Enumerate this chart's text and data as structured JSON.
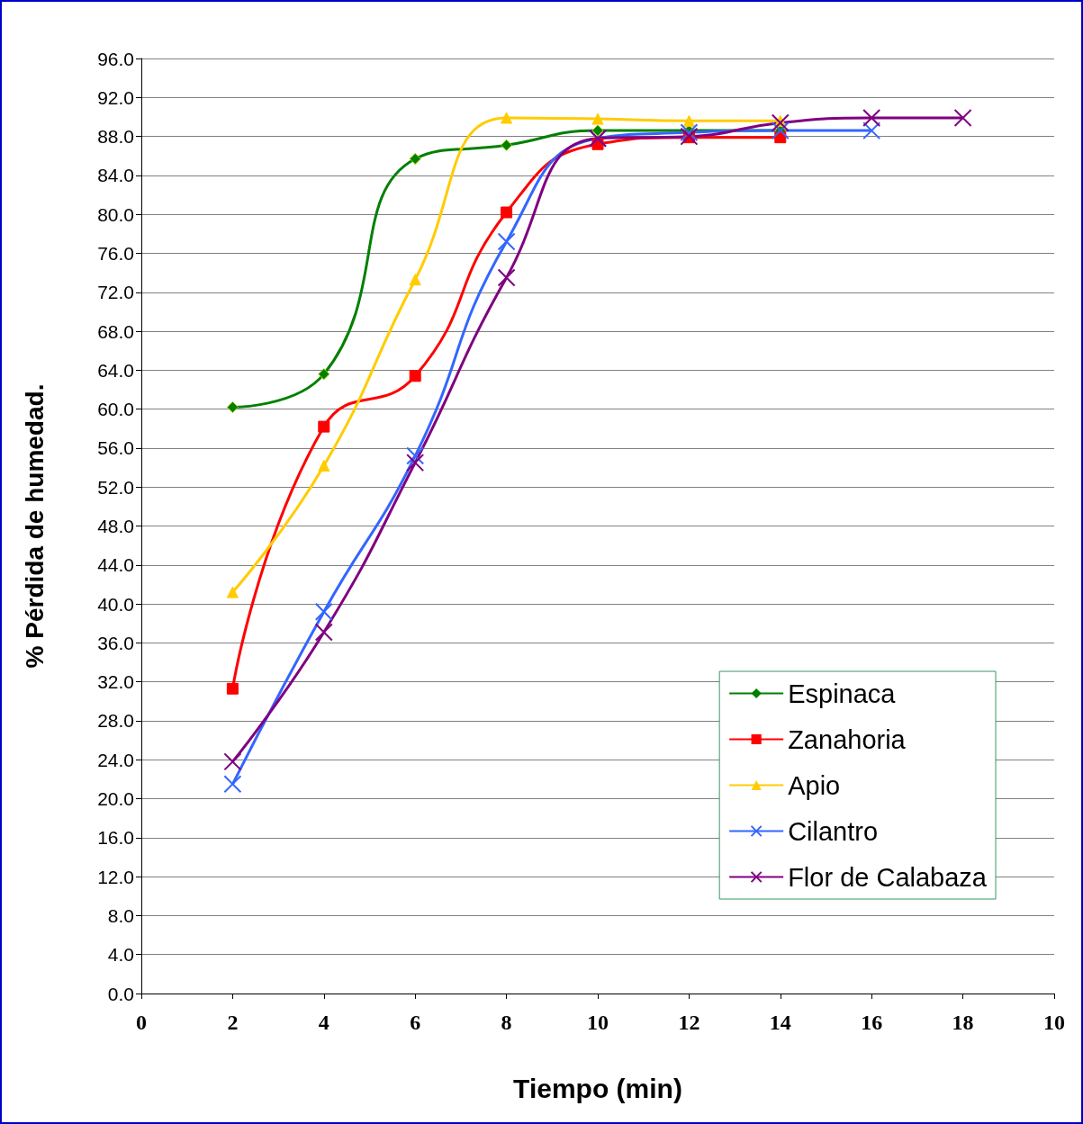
{
  "chart_data": {
    "type": "line",
    "xlabel": "Tiempo (min)",
    "ylabel": "% Pérdida de humedad.",
    "categories": [
      "0",
      "2",
      "4",
      "6",
      "8",
      "10",
      "12",
      "14",
      "16",
      "18",
      "10"
    ],
    "ylim": [
      0,
      96
    ],
    "yticks": [
      {
        "value": 0,
        "label": "0.0"
      },
      {
        "value": 4,
        "label": "4.0"
      },
      {
        "value": 8,
        "label": "8.0"
      },
      {
        "value": 12,
        "label": "12.0"
      },
      {
        "value": 16,
        "label": "16.0"
      },
      {
        "value": 20,
        "label": "20.0"
      },
      {
        "value": 24,
        "label": "24.0"
      },
      {
        "value": 28,
        "label": "28.0"
      },
      {
        "value": 32,
        "label": "32.0"
      },
      {
        "value": 36,
        "label": "36.0"
      },
      {
        "value": 40,
        "label": "40.0"
      },
      {
        "value": 44,
        "label": "44.0"
      },
      {
        "value": 48,
        "label": "48.0"
      },
      {
        "value": 52,
        "label": "52.0"
      },
      {
        "value": 56,
        "label": "56.0"
      },
      {
        "value": 60,
        "label": "60.0"
      },
      {
        "value": 64,
        "label": "64.0"
      },
      {
        "value": 68,
        "label": "68.0"
      },
      {
        "value": 72,
        "label": "72.0"
      },
      {
        "value": 76,
        "label": "76.0"
      },
      {
        "value": 80,
        "label": "80.0"
      },
      {
        "value": 84,
        "label": "84.0"
      },
      {
        "value": 88,
        "label": "88.0"
      },
      {
        "value": 92,
        "label": "92.0"
      },
      {
        "value": 96,
        "label": "96.0"
      }
    ],
    "grid": "y",
    "legend": "bottom right",
    "line_style": "solid",
    "series": [
      {
        "name": "Espinaca",
        "color": "#008000",
        "marker": "diamond",
        "values": [
          null,
          60.2,
          63.6,
          85.7,
          87.1,
          88.6,
          88.6,
          88.6,
          null,
          null,
          null
        ]
      },
      {
        "name": "Zanahoria",
        "color": "#ff0000",
        "marker": "square",
        "values": [
          null,
          31.3,
          58.2,
          63.4,
          80.2,
          87.2,
          87.9,
          87.9,
          null,
          null,
          null
        ]
      },
      {
        "name": "Apio",
        "color": "#ffcc00",
        "marker": "triangle",
        "values": [
          null,
          41.2,
          54.2,
          73.3,
          89.9,
          89.8,
          89.6,
          89.6,
          null,
          null,
          null
        ]
      },
      {
        "name": "Cilantro",
        "color": "#3366ff",
        "marker": "cross",
        "values": [
          null,
          21.5,
          39.2,
          55.2,
          77.2,
          87.8,
          88.4,
          88.6,
          88.6,
          null,
          null
        ]
      },
      {
        "name": "Flor de Calabaza",
        "color": "#800080",
        "marker": "cross",
        "values": [
          null,
          23.8,
          37.1,
          54.5,
          73.5,
          87.8,
          88.0,
          89.4,
          89.9,
          89.9,
          null
        ]
      }
    ]
  }
}
